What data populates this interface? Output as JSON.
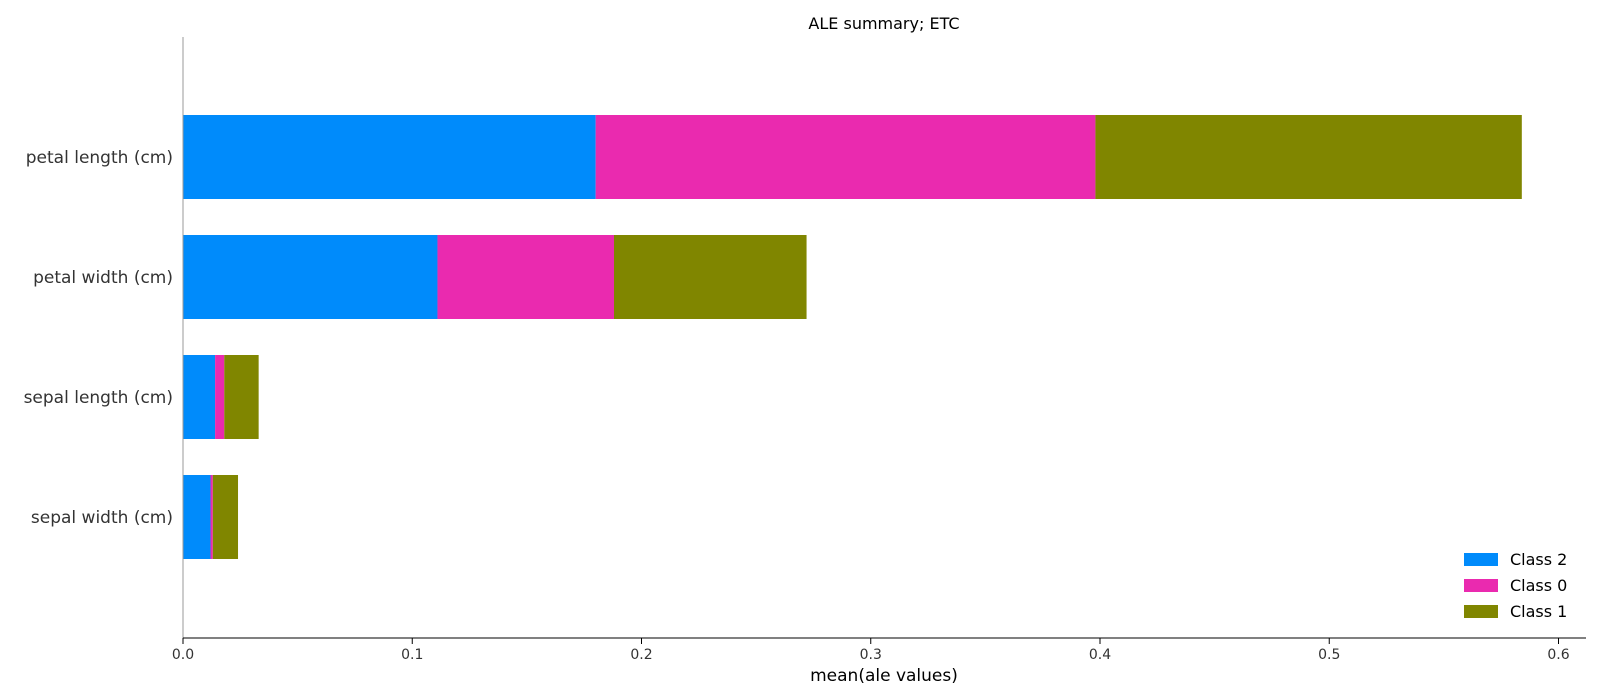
{
  "chart_data": {
    "type": "bar",
    "orientation": "horizontal",
    "stacked": true,
    "title": "ALE summary; ETC",
    "xlabel": "mean(ale values)",
    "ylabel": "",
    "xlim": [
      0,
      0.612
    ],
    "xticks": [
      0.0,
      0.1,
      0.2,
      0.3,
      0.4,
      0.5,
      0.6
    ],
    "xtick_labels": [
      "0.0",
      "0.1",
      "0.2",
      "0.3",
      "0.4",
      "0.5",
      "0.6"
    ],
    "categories": [
      "petal length (cm)",
      "petal width (cm)",
      "sepal length (cm)",
      "sepal width (cm)"
    ],
    "series": [
      {
        "name": "Class 2",
        "color": "#008bfb",
        "values": [
          0.18,
          0.111,
          0.014,
          0.012
        ]
      },
      {
        "name": "Class 0",
        "color": "#ea2aaf",
        "values": [
          0.218,
          0.077,
          0.004,
          0.001
        ]
      },
      {
        "name": "Class 1",
        "color": "#808600",
        "values": [
          0.186,
          0.084,
          0.015,
          0.011
        ]
      }
    ],
    "grid": false,
    "legend_position": "bottom-right"
  }
}
